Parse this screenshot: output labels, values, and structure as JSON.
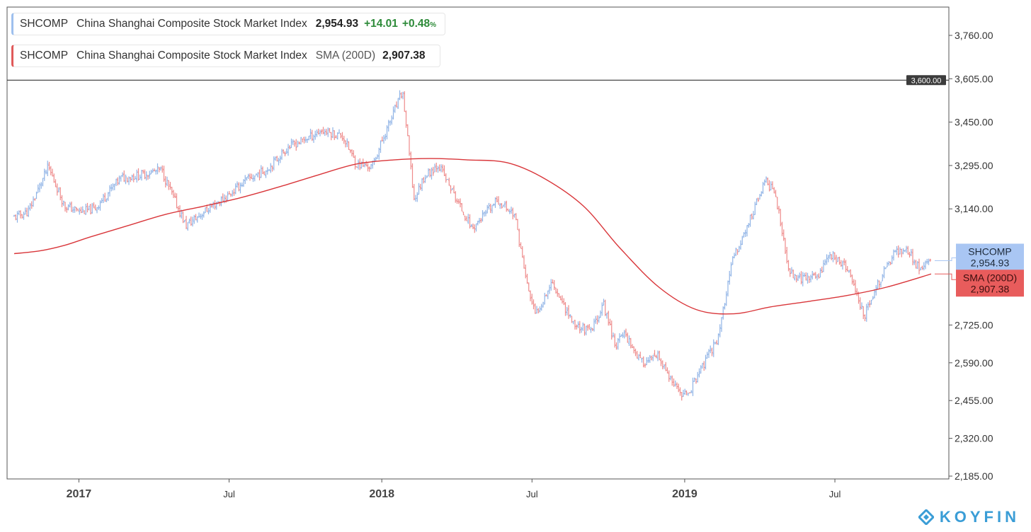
{
  "legend": {
    "primary": {
      "symbol": "SHCOMP",
      "name": "China Shanghai Composite Stock Market Index",
      "value": "2,954.93",
      "change": "+14.01",
      "change_pct": "+0.48",
      "pct_unit": "%"
    },
    "sma": {
      "symbol": "SHCOMP",
      "name": "China Shanghai Composite Stock Market Index",
      "indicator": "SMA (200D)",
      "value": "2,907.38"
    }
  },
  "price_tags": {
    "horizontal_line": "3,600.00",
    "shcomp_label": "SHCOMP",
    "shcomp_value": "2,954.93",
    "sma_label": "SMA (200D)",
    "sma_value": "2,907.38"
  },
  "brand": "KOYFIN",
  "colors": {
    "price_up": "#8fb3e6",
    "price_down": "#ee8a8a",
    "sma_line": "#d9363a",
    "shcomp_tag": "#a9c6f3",
    "sma_tag": "#e85c5c",
    "hline": "#333333",
    "positive": "#2e8b3a",
    "brand": "#3a9dd6"
  },
  "chart_data": {
    "type": "line",
    "title": "",
    "xlabel": "",
    "ylabel": "",
    "ylim": [
      2185,
      3800
    ],
    "y_ticks": [
      "3,760.00",
      "3,605.00",
      "3,450.00",
      "3,295.00",
      "3,140.00",
      "2,725.00",
      "2,590.00",
      "2,455.00",
      "2,320.00",
      "2,185.00"
    ],
    "y_tick_values": [
      3760,
      3605,
      3450,
      3295,
      3140,
      2725,
      2590,
      2455,
      2320,
      2185
    ],
    "x_ticks": [
      {
        "label": "2017",
        "date": "2017-01-01",
        "bold": true
      },
      {
        "label": "Jul",
        "date": "2017-07-01",
        "bold": false
      },
      {
        "label": "2018",
        "date": "2018-01-01",
        "bold": true
      },
      {
        "label": "Jul",
        "date": "2018-07-01",
        "bold": false
      },
      {
        "label": "2019",
        "date": "2019-01-01",
        "bold": true
      },
      {
        "label": "Jul",
        "date": "2019-07-01",
        "bold": false
      }
    ],
    "x_range": [
      "2016-10-15",
      "2019-10-25"
    ],
    "horizontal_line": 3600,
    "grid": false,
    "series": [
      {
        "name": "SHCOMP",
        "style": "ohlc-bars",
        "x": [
          "2016-10-15",
          "2016-11-01",
          "2016-11-25",
          "2016-12-15",
          "2017-01-03",
          "2017-01-20",
          "2017-02-20",
          "2017-03-15",
          "2017-04-10",
          "2017-05-10",
          "2017-06-01",
          "2017-07-01",
          "2017-07-20",
          "2017-08-15",
          "2017-09-10",
          "2017-10-01",
          "2017-10-20",
          "2017-11-15",
          "2017-12-01",
          "2017-12-20",
          "2018-01-05",
          "2018-01-26",
          "2018-02-09",
          "2018-02-20",
          "2018-03-10",
          "2018-04-05",
          "2018-04-20",
          "2018-05-20",
          "2018-06-10",
          "2018-06-25",
          "2018-07-05",
          "2018-07-25",
          "2018-08-20",
          "2018-09-10",
          "2018-09-25",
          "2018-10-10",
          "2018-10-20",
          "2018-11-10",
          "2018-11-30",
          "2018-12-20",
          "2019-01-03",
          "2019-01-25",
          "2019-02-10",
          "2019-02-28",
          "2019-03-15",
          "2019-04-08",
          "2019-04-20",
          "2019-05-06",
          "2019-05-20",
          "2019-06-10",
          "2019-06-25",
          "2019-07-15",
          "2019-08-06",
          "2019-08-20",
          "2019-09-10",
          "2019-09-25",
          "2019-10-10",
          "2019-10-25"
        ],
        "values": [
          3110,
          3130,
          3290,
          3150,
          3130,
          3140,
          3250,
          3260,
          3280,
          3080,
          3130,
          3190,
          3240,
          3280,
          3360,
          3390,
          3420,
          3400,
          3300,
          3290,
          3410,
          3560,
          3170,
          3250,
          3300,
          3150,
          3070,
          3170,
          3120,
          2870,
          2760,
          2880,
          2730,
          2700,
          2800,
          2650,
          2700,
          2590,
          2610,
          2500,
          2470,
          2590,
          2680,
          2960,
          3060,
          3240,
          3200,
          2920,
          2890,
          2900,
          2980,
          2930,
          2760,
          2860,
          2980,
          3000,
          2930,
          2954.93
        ]
      },
      {
        "name": "SMA (200D)",
        "style": "line",
        "x": [
          "2016-10-15",
          "2016-11-15",
          "2016-12-15",
          "2017-01-15",
          "2017-03-01",
          "2017-04-15",
          "2017-06-01",
          "2017-07-15",
          "2017-09-01",
          "2017-10-15",
          "2017-12-01",
          "2018-01-15",
          "2018-03-01",
          "2018-04-15",
          "2018-06-01",
          "2018-07-15",
          "2018-09-01",
          "2018-10-15",
          "2018-12-01",
          "2019-01-15",
          "2019-03-01",
          "2019-04-15",
          "2019-06-01",
          "2019-07-15",
          "2019-09-01",
          "2019-10-25"
        ],
        "values": [
          2980,
          2990,
          3010,
          3040,
          3080,
          3120,
          3150,
          3180,
          3220,
          3260,
          3300,
          3315,
          3320,
          3315,
          3305,
          3250,
          3150,
          3000,
          2860,
          2780,
          2765,
          2790,
          2810,
          2830,
          2860,
          2907.38
        ]
      }
    ]
  }
}
